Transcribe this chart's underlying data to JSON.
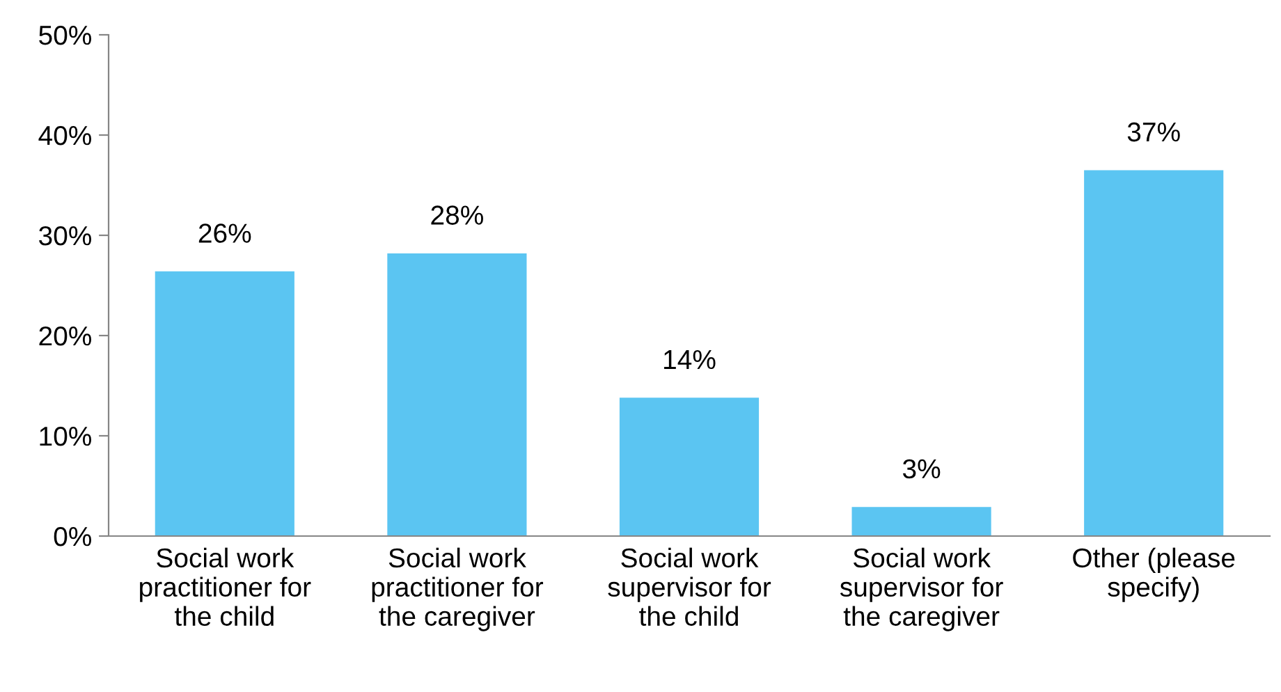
{
  "chart_data": {
    "type": "bar",
    "categories": [
      "Social work\npractitioner for\nthe child",
      "Social work\npractitioner for\nthe caregiver",
      "Social work\nsupervisor for\nthe child",
      "Social work\nsupervisor for\nthe caregiver",
      "Other (please\nspecify)"
    ],
    "values": [
      26.4,
      28.2,
      13.8,
      2.9,
      36.5
    ],
    "value_labels": [
      "26%",
      "28%",
      "14%",
      "3%",
      "37%"
    ],
    "color": "#5bc5f2",
    "ylim": [
      0,
      50
    ],
    "yticks": [
      {
        "value": 0,
        "label": "0%"
      },
      {
        "value": 10,
        "label": "10%"
      },
      {
        "value": 20,
        "label": "20%"
      },
      {
        "value": 30,
        "label": "30%"
      },
      {
        "value": 40,
        "label": "40%"
      },
      {
        "value": 50,
        "label": "50%"
      }
    ],
    "grid": false
  }
}
